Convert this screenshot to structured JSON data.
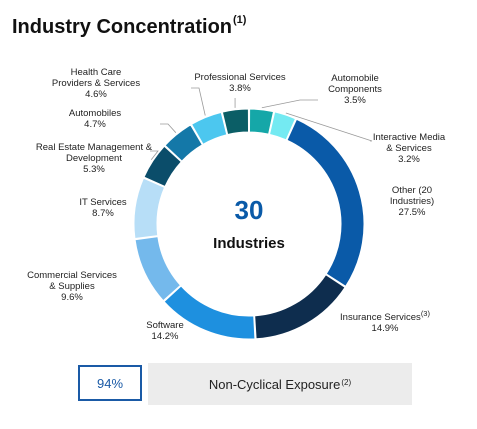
{
  "title": {
    "text": "Industry Concentration",
    "note": "(1)"
  },
  "center": {
    "number": "30",
    "word": "Industries"
  },
  "footer": {
    "percent": "94%",
    "label": "Non-Cyclical Exposure",
    "note": "(2)"
  },
  "colors": {
    "accent": "#1a5aa6",
    "footer_bg": "#ececec"
  },
  "chart_data": {
    "type": "pie",
    "donut": true,
    "title": "Industry Concentration",
    "slices": [
      {
        "label": "Automobile Components",
        "value": 3.5,
        "value_label": "3.5%",
        "color": "#15a7a8"
      },
      {
        "label": "Interactive Media & Services",
        "value": 3.2,
        "value_label": "3.2%",
        "color": "#74eaf2"
      },
      {
        "label": "Other (20 Industries)",
        "value": 27.5,
        "value_label": "27.5%",
        "color": "#0a5aa8"
      },
      {
        "label": "Insurance Services",
        "note": "(3)",
        "value": 14.9,
        "value_label": "14.9%",
        "color": "#0e2d4e"
      },
      {
        "label": "Software",
        "value": 14.2,
        "value_label": "14.2%",
        "color": "#1e90df"
      },
      {
        "label": "Commercial Services & Supplies",
        "value": 9.6,
        "value_label": "9.6%",
        "color": "#74b9ec"
      },
      {
        "label": "IT Services",
        "value": 8.7,
        "value_label": "8.7%",
        "color": "#b7def7"
      },
      {
        "label": "Real Estate Management & Development",
        "value": 5.3,
        "value_label": "5.3%",
        "color": "#0b4d6a"
      },
      {
        "label": "Automobiles",
        "value": 4.7,
        "value_label": "4.7%",
        "color": "#1478a8"
      },
      {
        "label": "Health Care Providers & Services",
        "value": 4.6,
        "value_label": "4.6%",
        "color": "#4cc7ef"
      },
      {
        "label": "Professional Services",
        "value": 3.8,
        "value_label": "3.8%",
        "color": "#0b5e66"
      }
    ]
  }
}
